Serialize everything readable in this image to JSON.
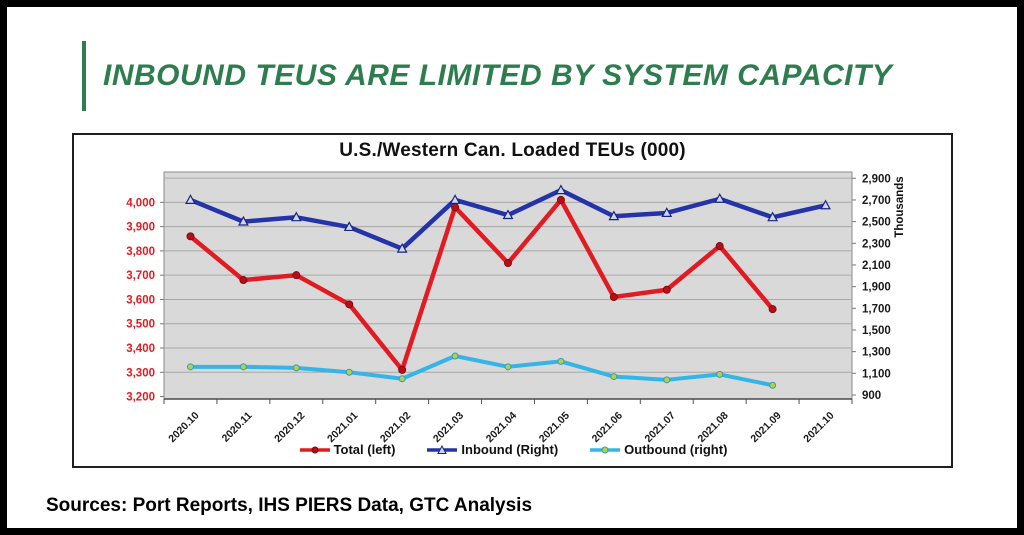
{
  "headline": "INBOUND TEUS ARE LIMITED BY SYSTEM CAPACITY",
  "sources": "Sources: Port Reports, IHS PIERS Data, GTC Analysis",
  "chart": {
    "title": "U.S./Western Can. Loaded TEUs (000)",
    "right_axis_title": "Thousands"
  },
  "colors": {
    "headline_green": "#2E7D4F",
    "total_red": "#E11B22",
    "inbound_navy": "#2433A8",
    "outbound_cyan": "#35B5E5",
    "plot_background": "#D9D9D9",
    "gridline": "#A8A8A8",
    "left_axis_labels": "#E11B22",
    "right_axis_labels": "#1A1A1A"
  },
  "chart_data": {
    "type": "line",
    "title": "U.S./Western Can. Loaded TEUs (000)",
    "grid": true,
    "legend_position": "bottom",
    "categories": [
      "2020.10",
      "2020.11",
      "2020.12",
      "2021.01",
      "2021.02",
      "2021.03",
      "2021.04",
      "2021.05",
      "2021.06",
      "2021.07",
      "2021.08",
      "2021.09",
      "2021.10"
    ],
    "series": [
      {
        "name": "Total (left)",
        "axis": "left",
        "color": "#E11B22",
        "marker": "circle",
        "values": [
          3860,
          3680,
          3700,
          3580,
          3310,
          3980,
          3750,
          4010,
          3610,
          3640,
          3820,
          3560,
          null
        ]
      },
      {
        "name": "Inbound (Right)",
        "axis": "right",
        "color": "#2433A8",
        "marker": "triangle",
        "values": [
          2700,
          2500,
          2540,
          2450,
          2250,
          2700,
          2560,
          2790,
          2550,
          2580,
          2710,
          2540,
          2650
        ]
      },
      {
        "name": "Outbound (right)",
        "axis": "right",
        "color": "#35B5E5",
        "marker": "dot",
        "values": [
          1160,
          1160,
          1150,
          1110,
          1050,
          1260,
          1160,
          1210,
          1070,
          1040,
          1090,
          990,
          null
        ]
      }
    ],
    "left_axis": {
      "tick_values": [
        3200,
        3300,
        3400,
        3500,
        3600,
        3700,
        3800,
        3900,
        4000
      ],
      "tick_labels": [
        "3,200",
        "3,300",
        "3,400",
        "3,500",
        "3,600",
        "3,700",
        "3,800",
        "3,900",
        "4,000"
      ],
      "range_bottom": 3190,
      "range_top": 4125,
      "extra_gridline_value": 4100
    },
    "right_axis": {
      "tick_values": [
        900,
        1100,
        1300,
        1500,
        1700,
        1900,
        2100,
        2300,
        2500,
        2700,
        2900
      ],
      "tick_labels": [
        "900",
        "1,100",
        "1,300",
        "1,500",
        "1,700",
        "1,900",
        "2,100",
        "2,300",
        "2,500",
        "2,700",
        "2,900"
      ],
      "range_bottom": 863,
      "range_top": 2958,
      "title": "Thousands"
    }
  }
}
